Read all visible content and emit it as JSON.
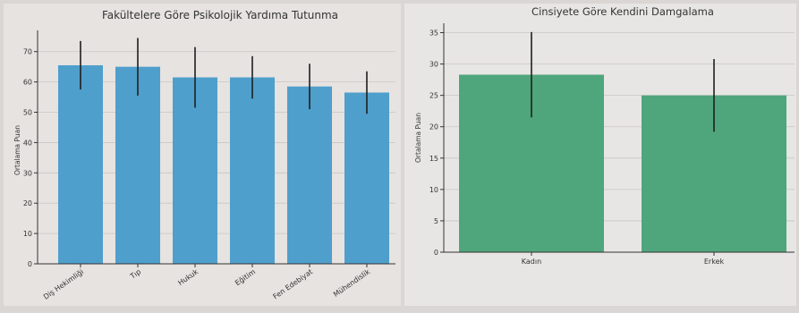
{
  "chart_data": [
    {
      "type": "bar",
      "title": "Fakültelere Göre Psikolojik Yardıma Tutunma",
      "xlabel": "",
      "ylabel": "Ortalama Puan",
      "categories": [
        "Diş Hekimliği",
        "Tıp",
        "Hukuk",
        "Eğitim",
        "Fen Edebiyat",
        "Mühendislik"
      ],
      "values": [
        65.5,
        65,
        61.5,
        61.5,
        58.5,
        56.5
      ],
      "errors": [
        8,
        9.5,
        10,
        7,
        7.5,
        7
      ],
      "yticks": [
        0,
        10,
        20,
        30,
        40,
        50,
        60,
        70
      ],
      "ylim": [
        0,
        77
      ],
      "color": "#4f9fcc",
      "grid": true,
      "legend": "none"
    },
    {
      "type": "bar",
      "title": "Cinsiyete Göre Kendini Damgalama",
      "xlabel": "",
      "ylabel": "Ortalama Puan",
      "categories": [
        "Kadın",
        "Erkek"
      ],
      "values": [
        28.3,
        25
      ],
      "errors": [
        6.8,
        5.8
      ],
      "yticks": [
        0,
        5,
        10,
        15,
        20,
        25,
        30,
        35
      ],
      "ylim": [
        0,
        36.5
      ],
      "color": "#4fa67c",
      "grid": true,
      "legend": "none"
    }
  ]
}
